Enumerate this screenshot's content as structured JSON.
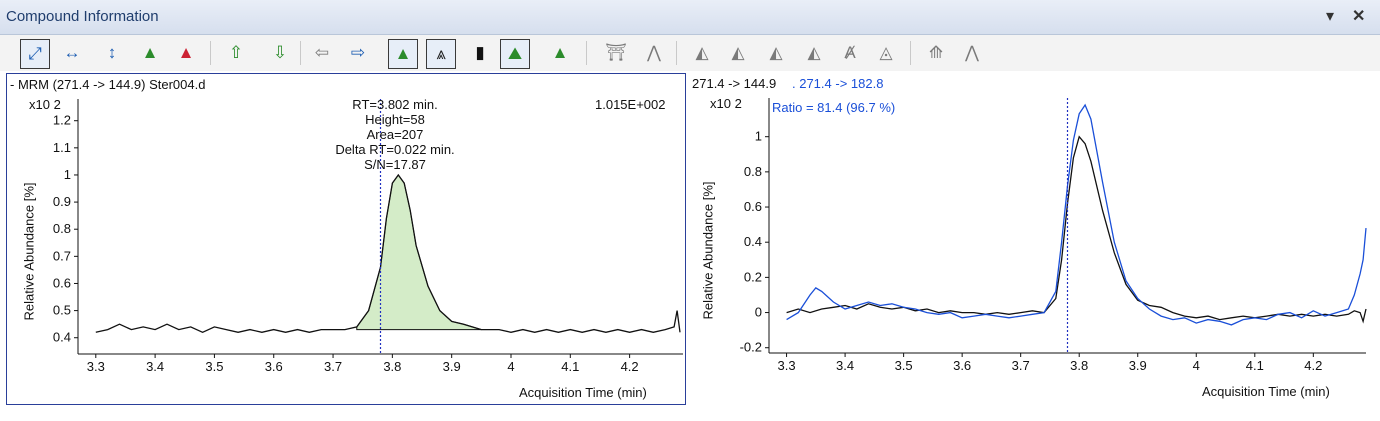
{
  "window": {
    "title": "Compound Information",
    "dropdown_icon": "dropdown-arrow-icon",
    "close_icon": "close-icon"
  },
  "toolbar": {
    "buttons": [
      "autoscale-icon",
      "zoom-horizontal-icon",
      "zoom-vertical-icon",
      "peak-integrate-icon",
      "baseline-icon",
      "previous-compound-icon",
      "next-compound-icon",
      "previous-sample-icon",
      "next-sample-icon",
      "show-peak-icon",
      "overlay-peaks-icon",
      "spectrum-icon",
      "internal-standard-icon",
      "qualifier-icon",
      "manual-integrate-icon",
      "split-peak-icon",
      "drop-baseline-icon",
      "tangent-skim-icon",
      "merge-peaks-icon",
      "delete-peak-icon",
      "clear-integration-icon",
      "zero-peak-icon",
      "restore-icon",
      "apply-icon"
    ]
  },
  "left_panel": {
    "header": "- MRM (271.4 -> 144.9) Ster004.d",
    "scale_label": "x10 2",
    "max_label": "1.015E+002",
    "ylabel": "Relative Abundance [%]",
    "xlabel": "Acquisition Time (min)",
    "annotation": [
      "RT=3.802 min.",
      "Height=58",
      "Area=207",
      "Delta RT=0.022 min.",
      "S/N=17.87"
    ]
  },
  "right_panel": {
    "header_black": "271.4 -> 144.9",
    "header_blue": ". 271.4 -> 182.8",
    "scale_label": "x10 2",
    "ratio": "Ratio = 81.4 (96.7 %)",
    "ylabel": "Relative Abundance [%]",
    "xlabel": "Acquisition Time (min)"
  },
  "colors": {
    "accent": "#1a4fd8",
    "peak_fill": "#d4ecc8",
    "trace": "#111111"
  },
  "chart_data": [
    {
      "type": "line",
      "title": "- MRM (271.4 -> 144.9) Ster004.d",
      "xlabel": "Acquisition Time (min)",
      "ylabel": "Relative Abundance [%]",
      "xlim": [
        3.27,
        4.29
      ],
      "ylim": [
        0.34,
        1.28
      ],
      "xticks": [
        "3.3",
        "3.4",
        "3.5",
        "3.6",
        "3.7",
        "3.8",
        "3.9",
        "4",
        "4.1",
        "4.2"
      ],
      "yticks": [
        "0.4",
        "0.5",
        "0.6",
        "0.7",
        "0.8",
        "0.9",
        "1",
        "1.1",
        "1.2"
      ],
      "rt_marker": 3.78,
      "integrated_region": [
        3.74,
        3.95
      ],
      "series": [
        {
          "values": [
            [
              3.3,
              0.42
            ],
            [
              3.32,
              0.43
            ],
            [
              3.34,
              0.45
            ],
            [
              3.36,
              0.43
            ],
            [
              3.38,
              0.44
            ],
            [
              3.4,
              0.43
            ],
            [
              3.42,
              0.45
            ],
            [
              3.44,
              0.43
            ],
            [
              3.46,
              0.44
            ],
            [
              3.48,
              0.42
            ],
            [
              3.5,
              0.44
            ],
            [
              3.52,
              0.43
            ],
            [
              3.54,
              0.42
            ],
            [
              3.56,
              0.43
            ],
            [
              3.58,
              0.42
            ],
            [
              3.6,
              0.43
            ],
            [
              3.62,
              0.42
            ],
            [
              3.64,
              0.43
            ],
            [
              3.66,
              0.42
            ],
            [
              3.68,
              0.43
            ],
            [
              3.7,
              0.43
            ],
            [
              3.72,
              0.43
            ],
            [
              3.74,
              0.44
            ],
            [
              3.76,
              0.5
            ],
            [
              3.78,
              0.66
            ],
            [
              3.79,
              0.84
            ],
            [
              3.8,
              0.97
            ],
            [
              3.81,
              1.0
            ],
            [
              3.82,
              0.97
            ],
            [
              3.83,
              0.87
            ],
            [
              3.84,
              0.74
            ],
            [
              3.86,
              0.59
            ],
            [
              3.88,
              0.5
            ],
            [
              3.9,
              0.46
            ],
            [
              3.92,
              0.45
            ],
            [
              3.95,
              0.43
            ],
            [
              3.98,
              0.43
            ],
            [
              4.0,
              0.42
            ],
            [
              4.02,
              0.43
            ],
            [
              4.04,
              0.42
            ],
            [
              4.06,
              0.43
            ],
            [
              4.08,
              0.42
            ],
            [
              4.1,
              0.43
            ],
            [
              4.12,
              0.42
            ],
            [
              4.14,
              0.43
            ],
            [
              4.16,
              0.42
            ],
            [
              4.18,
              0.43
            ],
            [
              4.2,
              0.42
            ],
            [
              4.22,
              0.43
            ],
            [
              4.24,
              0.42
            ],
            [
              4.26,
              0.43
            ],
            [
              4.275,
              0.44
            ],
            [
              4.28,
              0.5
            ],
            [
              4.285,
              0.42
            ]
          ]
        }
      ]
    },
    {
      "type": "line",
      "xlabel": "Acquisition Time (min)",
      "ylabel": "Relative Abundance [%]",
      "xlim": [
        3.27,
        4.29
      ],
      "ylim": [
        -0.23,
        1.22
      ],
      "xticks": [
        "3.3",
        "3.4",
        "3.5",
        "3.6",
        "3.7",
        "3.8",
        "3.9",
        "4",
        "4.1",
        "4.2"
      ],
      "yticks": [
        "-0.2",
        "0",
        "0.2",
        "0.4",
        "0.6",
        "0.8",
        "1"
      ],
      "rt_marker": 3.78,
      "series": [
        {
          "name": "271.4 -> 144.9",
          "color": "#111111",
          "values": [
            [
              3.3,
              0.0
            ],
            [
              3.32,
              0.02
            ],
            [
              3.34,
              0.0
            ],
            [
              3.36,
              0.02
            ],
            [
              3.38,
              0.03
            ],
            [
              3.4,
              0.04
            ],
            [
              3.42,
              0.02
            ],
            [
              3.44,
              0.05
            ],
            [
              3.46,
              0.03
            ],
            [
              3.48,
              0.02
            ],
            [
              3.5,
              0.03
            ],
            [
              3.52,
              0.01
            ],
            [
              3.54,
              0.02
            ],
            [
              3.56,
              0.0
            ],
            [
              3.58,
              0.01
            ],
            [
              3.6,
              0.0
            ],
            [
              3.62,
              0.0
            ],
            [
              3.64,
              -0.01
            ],
            [
              3.66,
              0.0
            ],
            [
              3.68,
              -0.01
            ],
            [
              3.7,
              0.0
            ],
            [
              3.72,
              0.01
            ],
            [
              3.74,
              0.0
            ],
            [
              3.76,
              0.08
            ],
            [
              3.77,
              0.3
            ],
            [
              3.78,
              0.62
            ],
            [
              3.79,
              0.88
            ],
            [
              3.8,
              1.0
            ],
            [
              3.81,
              0.96
            ],
            [
              3.82,
              0.86
            ],
            [
              3.84,
              0.58
            ],
            [
              3.86,
              0.34
            ],
            [
              3.88,
              0.16
            ],
            [
              3.9,
              0.07
            ],
            [
              3.92,
              0.04
            ],
            [
              3.94,
              0.03
            ],
            [
              3.96,
              0.0
            ],
            [
              3.98,
              -0.02
            ],
            [
              4.0,
              -0.03
            ],
            [
              4.02,
              -0.02
            ],
            [
              4.04,
              -0.04
            ],
            [
              4.06,
              -0.03
            ],
            [
              4.08,
              -0.02
            ],
            [
              4.1,
              -0.03
            ],
            [
              4.12,
              -0.02
            ],
            [
              4.14,
              -0.01
            ],
            [
              4.16,
              -0.02
            ],
            [
              4.18,
              -0.01
            ],
            [
              4.2,
              -0.02
            ],
            [
              4.22,
              -0.01
            ],
            [
              4.24,
              -0.02
            ],
            [
              4.26,
              -0.01
            ],
            [
              4.27,
              0.01
            ],
            [
              4.28,
              0.0
            ],
            [
              4.285,
              -0.05
            ],
            [
              4.29,
              0.02
            ]
          ]
        },
        {
          "name": "271.4 -> 182.8",
          "color": "#1a4fd8",
          "values": [
            [
              3.3,
              -0.04
            ],
            [
              3.32,
              0.0
            ],
            [
              3.34,
              0.1
            ],
            [
              3.35,
              0.14
            ],
            [
              3.36,
              0.12
            ],
            [
              3.38,
              0.06
            ],
            [
              3.4,
              0.02
            ],
            [
              3.42,
              0.04
            ],
            [
              3.44,
              0.06
            ],
            [
              3.46,
              0.04
            ],
            [
              3.48,
              0.05
            ],
            [
              3.5,
              0.03
            ],
            [
              3.52,
              0.02
            ],
            [
              3.54,
              0.0
            ],
            [
              3.56,
              -0.01
            ],
            [
              3.58,
              0.0
            ],
            [
              3.6,
              -0.03
            ],
            [
              3.62,
              -0.02
            ],
            [
              3.64,
              -0.01
            ],
            [
              3.66,
              -0.02
            ],
            [
              3.68,
              -0.03
            ],
            [
              3.7,
              -0.02
            ],
            [
              3.72,
              -0.01
            ],
            [
              3.74,
              0.0
            ],
            [
              3.76,
              0.12
            ],
            [
              3.77,
              0.4
            ],
            [
              3.78,
              0.72
            ],
            [
              3.79,
              0.98
            ],
            [
              3.8,
              1.13
            ],
            [
              3.81,
              1.18
            ],
            [
              3.82,
              1.1
            ],
            [
              3.84,
              0.74
            ],
            [
              3.86,
              0.4
            ],
            [
              3.88,
              0.18
            ],
            [
              3.9,
              0.08
            ],
            [
              3.92,
              0.02
            ],
            [
              3.94,
              -0.02
            ],
            [
              3.96,
              -0.04
            ],
            [
              3.98,
              -0.03
            ],
            [
              4.0,
              -0.06
            ],
            [
              4.02,
              -0.04
            ],
            [
              4.04,
              -0.05
            ],
            [
              4.06,
              -0.07
            ],
            [
              4.08,
              -0.04
            ],
            [
              4.1,
              -0.03
            ],
            [
              4.12,
              -0.04
            ],
            [
              4.14,
              -0.01
            ],
            [
              4.16,
              0.0
            ],
            [
              4.18,
              -0.03
            ],
            [
              4.2,
              0.01
            ],
            [
              4.22,
              -0.02
            ],
            [
              4.24,
              0.0
            ],
            [
              4.26,
              0.02
            ],
            [
              4.27,
              0.1
            ],
            [
              4.28,
              0.22
            ],
            [
              4.285,
              0.3
            ],
            [
              4.29,
              0.48
            ]
          ]
        }
      ]
    }
  ]
}
